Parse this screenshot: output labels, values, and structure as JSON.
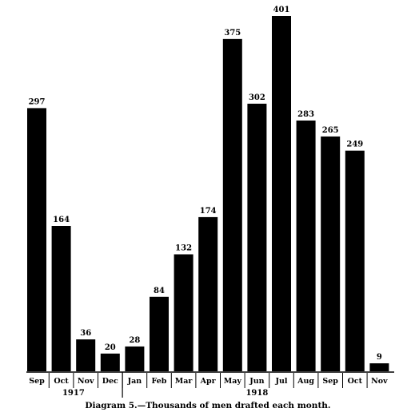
{
  "chart_data": {
    "type": "bar",
    "categories": [
      "Sep",
      "Oct",
      "Nov",
      "Dec",
      "Jan",
      "Feb",
      "Mar",
      "Apr",
      "May",
      "Jun",
      "Jul",
      "Aug",
      "Sep",
      "Oct",
      "Nov"
    ],
    "values": [
      297,
      164,
      36,
      20,
      28,
      84,
      132,
      174,
      375,
      302,
      401,
      283,
      265,
      249,
      9
    ],
    "value_labels": [
      "297",
      "164",
      "36",
      "20",
      "28",
      "84",
      "132",
      "174",
      "375",
      "302",
      "401",
      "283",
      "265",
      "249",
      "9"
    ],
    "year_groups": [
      {
        "label": "1917",
        "start": 0,
        "end": 3
      },
      {
        "label": "1918",
        "start": 4,
        "end": 14
      }
    ],
    "ylim": [
      0,
      401
    ],
    "grid": false,
    "bar_color": "#000000"
  },
  "caption": "Diagram 5.—Thousands of men drafted each month."
}
